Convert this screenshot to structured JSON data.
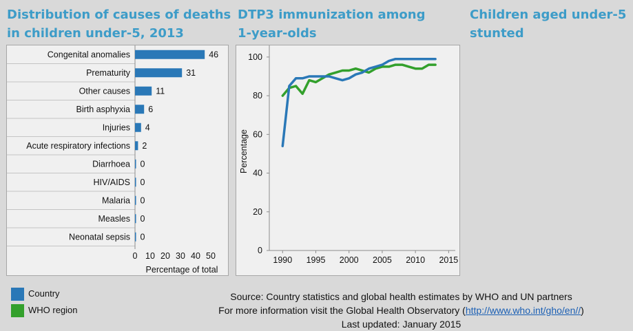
{
  "panels": {
    "causes_title": [
      "Distribution of causes of deaths",
      "in children under-5, 2013"
    ],
    "dtp3_title": [
      "DTP3 immunization among",
      "1-year-olds"
    ],
    "stunted_title": [
      "Children aged under-5",
      "stunted"
    ]
  },
  "colors": {
    "country": "#2a78b7",
    "who_region": "#33a02c"
  },
  "chart_data": [
    {
      "type": "bar",
      "orientation": "horizontal",
      "title": "Distribution of causes of deaths in children under-5, 2013",
      "categories": [
        "Congenital anomalies",
        "Prematurity",
        "Other causes",
        "Birth asphyxia",
        "Injuries",
        "Acute respiratory infections",
        "Diarrhoea",
        "HIV/AIDS",
        "Malaria",
        "Measles",
        "Neonatal sepsis"
      ],
      "values": [
        46,
        31,
        11,
        6,
        4,
        2,
        0,
        0,
        0,
        0,
        0
      ],
      "xlabel": "Percentage of total",
      "xticks": [
        0,
        10,
        20,
        30,
        40,
        50
      ],
      "xlim": [
        0,
        50
      ],
      "grid": false
    },
    {
      "type": "line",
      "title": "DTP3 immunization among 1-year-olds",
      "ylabel": "Percentage",
      "xticks": [
        1990,
        1995,
        2000,
        2005,
        2010,
        2015
      ],
      "yticks": [
        0,
        20,
        40,
        60,
        80,
        100
      ],
      "xlim": [
        1988,
        2016
      ],
      "ylim": [
        0,
        106
      ],
      "grid": false,
      "series": [
        {
          "name": "Country",
          "x": [
            1990,
            1991,
            1992,
            1993,
            1994,
            1995,
            1996,
            1997,
            1998,
            1999,
            2000,
            2001,
            2002,
            2003,
            2004,
            2005,
            2006,
            2007,
            2008,
            2009,
            2010,
            2011,
            2012,
            2013
          ],
          "y": [
            54,
            85,
            89,
            89,
            90,
            90,
            90,
            90,
            89,
            88,
            89,
            91,
            92,
            94,
            95,
            96,
            98,
            99,
            99,
            99,
            99,
            99,
            99,
            99
          ]
        },
        {
          "name": "WHO region",
          "x": [
            1990,
            1991,
            1992,
            1993,
            1994,
            1995,
            1996,
            1997,
            1998,
            1999,
            2000,
            2001,
            2002,
            2003,
            2004,
            2005,
            2006,
            2007,
            2008,
            2009,
            2010,
            2011,
            2012,
            2013
          ],
          "y": [
            80,
            84,
            85,
            81,
            88,
            87,
            89,
            91,
            92,
            93,
            93,
            94,
            93,
            92,
            94,
            95,
            95,
            96,
            96,
            95,
            94,
            94,
            96,
            96
          ]
        }
      ]
    }
  ],
  "legend": [
    {
      "label": "Country",
      "color": "#2a78b7"
    },
    {
      "label": "WHO region",
      "color": "#33a02c"
    }
  ],
  "footer": {
    "source": "Source:   Country statistics and global health estimates  by WHO and UN partners",
    "more_info_prefix": "For more information visit the Global Health Observatory (",
    "link_text": "http://www.who.int/gho/en//",
    "more_info_suffix": ")",
    "updated": "Last updated: January 2015"
  }
}
